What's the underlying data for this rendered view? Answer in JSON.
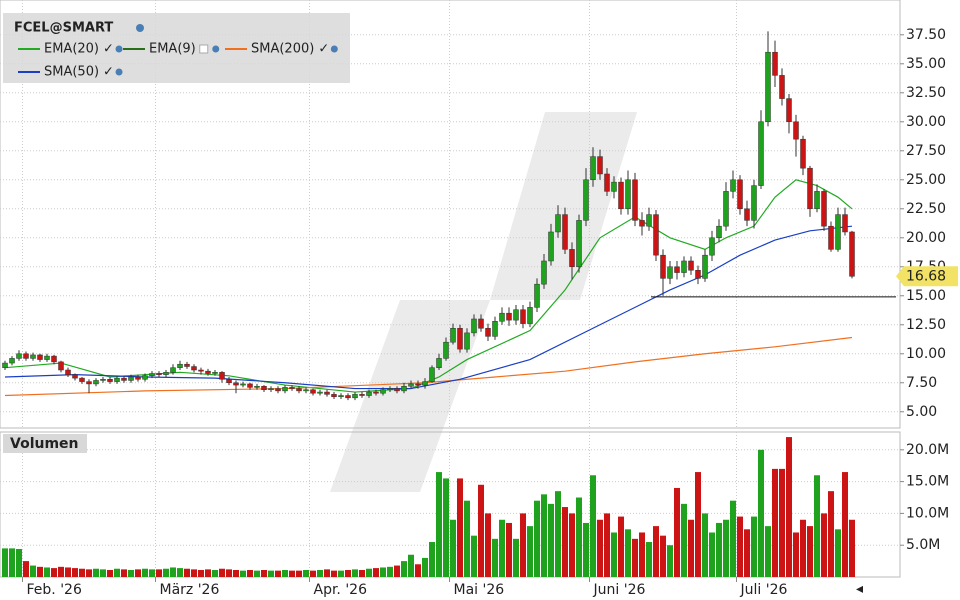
{
  "chart_data": {
    "type": "candlestick",
    "title": "FCEL@SMART",
    "volume_title": "Volumen",
    "up_color": "#1fa31f",
    "down_color": "#cc1414",
    "grid": true,
    "xticks": [
      {
        "value": 3,
        "label": "Feb. '26"
      },
      {
        "value": 22,
        "label": "März '26"
      },
      {
        "value": 44,
        "label": "Apr. '26"
      },
      {
        "value": 64,
        "label": "Mai '26"
      },
      {
        "value": 84,
        "label": "Juni '26"
      },
      {
        "value": 105,
        "label": "Juli '26"
      }
    ],
    "ylim": [
      3.6,
      40.5
    ],
    "yticks": [
      {
        "value": 5,
        "label": "5.00"
      },
      {
        "value": 7.5,
        "label": "7.50"
      },
      {
        "value": 10,
        "label": "10.00"
      },
      {
        "value": 12.5,
        "label": "12.50"
      },
      {
        "value": 15,
        "label": "15.00"
      },
      {
        "value": 17.5,
        "label": "17.50"
      },
      {
        "value": 20,
        "label": "20.00"
      },
      {
        "value": 22.5,
        "label": "22.50"
      },
      {
        "value": 25,
        "label": "25.00"
      },
      {
        "value": 27.5,
        "label": "27.50"
      },
      {
        "value": 30,
        "label": "30.00"
      },
      {
        "value": 32.5,
        "label": "32.50"
      },
      {
        "value": 35,
        "label": "35.00"
      },
      {
        "value": 37.5,
        "label": "37.50"
      }
    ],
    "volume_ylim": [
      0,
      22.8
    ],
    "volume_yticks": [
      {
        "value": 5,
        "label": "5.0M"
      },
      {
        "value": 10,
        "label": "10.0M"
      },
      {
        "value": 15,
        "label": "15.0M"
      },
      {
        "value": 20,
        "label": "20.0M"
      }
    ],
    "open": [
      8.8,
      9.2,
      9.6,
      10.0,
      9.6,
      9.9,
      9.5,
      9.8,
      9.3,
      8.6,
      8.2,
      7.9,
      7.6,
      7.4,
      7.7,
      7.8,
      7.6,
      7.9,
      7.7,
      8.0,
      7.8,
      8.1,
      8.3,
      8.2,
      8.4,
      8.8,
      9.1,
      8.9,
      8.6,
      8.5,
      8.3,
      8.4,
      7.8,
      7.5,
      7.3,
      7.4,
      7.1,
      7.2,
      6.9,
      7.0,
      6.8,
      7.1,
      7.0,
      6.8,
      6.9,
      6.6,
      6.7,
      6.5,
      6.3,
      6.4,
      6.2,
      6.5,
      6.4,
      6.7,
      6.6,
      6.9,
      7.0,
      6.8,
      7.2,
      7.4,
      7.3,
      7.6,
      8.8,
      9.6,
      11.0,
      12.2,
      10.4,
      11.8,
      13.0,
      12.2,
      11.5,
      12.8,
      13.5,
      12.9,
      13.8,
      12.6,
      14.0,
      16.0,
      18.0,
      20.5,
      22.0,
      19.0,
      17.5,
      21.5,
      25.0,
      27.0,
      25.5,
      24.0,
      24.8,
      22.5,
      25.0,
      21.5,
      21.0,
      22.0,
      18.5,
      16.5,
      17.5,
      17.0,
      18.0,
      17.2,
      16.5,
      18.5,
      20.0,
      21.0,
      24.0,
      25.0,
      22.5,
      21.5,
      24.5,
      30.0,
      36.0,
      34.0,
      32.0,
      30.0,
      28.5,
      26.0,
      22.5,
      24.0,
      21.0,
      19.0,
      22.0,
      20.5
    ],
    "high": [
      9.4,
      9.8,
      10.3,
      10.2,
      10.1,
      10.0,
      10.0,
      9.9,
      9.4,
      8.8,
      8.3,
      8.0,
      7.8,
      7.9,
      8.0,
      8.0,
      8.1,
      8.1,
      8.2,
      8.2,
      8.3,
      8.5,
      8.5,
      8.6,
      9.1,
      9.4,
      9.3,
      9.1,
      8.8,
      8.7,
      8.6,
      8.5,
      8.0,
      7.7,
      7.6,
      7.5,
      7.4,
      7.3,
      7.2,
      7.2,
      7.3,
      7.3,
      7.2,
      7.1,
      7.0,
      6.9,
      6.9,
      6.7,
      6.6,
      6.6,
      6.7,
      6.7,
      6.9,
      6.9,
      7.1,
      7.2,
      7.2,
      7.5,
      7.7,
      7.7,
      7.9,
      9.0,
      10.0,
      11.4,
      12.6,
      12.5,
      12.2,
      13.4,
      13.4,
      12.6,
      13.2,
      14.0,
      14.0,
      14.2,
      14.2,
      14.5,
      16.5,
      18.6,
      21.2,
      22.8,
      22.6,
      19.6,
      22.0,
      26.0,
      27.8,
      27.6,
      26.0,
      25.3,
      25.2,
      25.8,
      25.6,
      22.2,
      22.6,
      22.4,
      19.0,
      18.0,
      18.0,
      18.4,
      18.4,
      17.6,
      19.0,
      20.6,
      21.6,
      24.8,
      25.8,
      25.4,
      23.2,
      25.0,
      31.0,
      37.8,
      37.0,
      34.6,
      32.4,
      30.6,
      28.8,
      26.2,
      24.6,
      24.2,
      21.4,
      22.6,
      22.6,
      20.6
    ],
    "low": [
      8.6,
      9.0,
      9.4,
      9.4,
      9.4,
      9.3,
      9.3,
      9.1,
      8.4,
      8.0,
      7.7,
      7.4,
      6.6,
      7.2,
      7.5,
      7.4,
      7.4,
      7.5,
      7.5,
      7.6,
      7.6,
      7.9,
      8.0,
      8.0,
      8.2,
      8.6,
      8.7,
      8.4,
      8.2,
      8.1,
      8.1,
      7.5,
      7.3,
      6.6,
      7.1,
      6.9,
      6.9,
      6.7,
      6.7,
      6.6,
      6.6,
      6.8,
      6.6,
      6.6,
      6.4,
      6.4,
      6.3,
      6.1,
      6.1,
      6.0,
      6.0,
      6.2,
      6.2,
      6.4,
      6.4,
      6.7,
      6.6,
      6.6,
      7.0,
      7.0,
      7.0,
      7.5,
      8.6,
      9.4,
      10.8,
      10.1,
      10.1,
      11.5,
      11.9,
      11.1,
      11.2,
      12.5,
      12.4,
      12.5,
      12.2,
      12.3,
      13.6,
      15.6,
      17.6,
      20.0,
      18.6,
      16.4,
      17.0,
      21.0,
      24.4,
      25.0,
      23.6,
      23.4,
      22.0,
      22.0,
      21.0,
      20.2,
      20.6,
      18.0,
      15.0,
      16.0,
      16.4,
      16.6,
      16.8,
      16.0,
      16.2,
      18.0,
      19.6,
      20.6,
      23.4,
      22.0,
      21.0,
      20.8,
      24.2,
      29.6,
      33.0,
      31.4,
      29.0,
      27.0,
      25.4,
      21.8,
      22.2,
      20.6,
      18.8,
      18.8,
      20.2,
      16.5
    ],
    "close": [
      9.2,
      9.6,
      10.0,
      9.6,
      9.9,
      9.5,
      9.8,
      9.3,
      8.6,
      8.2,
      7.9,
      7.6,
      7.4,
      7.7,
      7.8,
      7.6,
      7.9,
      7.7,
      8.0,
      7.8,
      8.1,
      8.3,
      8.2,
      8.4,
      8.8,
      9.1,
      8.9,
      8.6,
      8.5,
      8.3,
      8.4,
      7.8,
      7.5,
      7.3,
      7.4,
      7.1,
      7.2,
      6.9,
      7.0,
      6.8,
      7.1,
      7.0,
      6.8,
      6.9,
      6.6,
      6.7,
      6.5,
      6.3,
      6.4,
      6.2,
      6.5,
      6.4,
      6.7,
      6.6,
      6.9,
      7.0,
      6.8,
      7.2,
      7.4,
      7.3,
      7.6,
      8.8,
      9.6,
      11.0,
      12.2,
      10.4,
      11.8,
      13.0,
      12.2,
      11.5,
      12.8,
      13.5,
      12.9,
      13.8,
      12.6,
      14.0,
      16.0,
      18.0,
      20.5,
      22.0,
      19.0,
      17.5,
      21.5,
      25.0,
      27.0,
      25.5,
      24.0,
      24.8,
      22.5,
      25.0,
      21.5,
      21.0,
      22.0,
      18.5,
      16.5,
      17.5,
      17.0,
      18.0,
      17.2,
      16.5,
      18.5,
      20.0,
      21.0,
      24.0,
      25.0,
      22.5,
      21.5,
      24.5,
      30.0,
      36.0,
      34.0,
      32.0,
      30.0,
      28.5,
      26.0,
      22.5,
      24.0,
      21.0,
      19.0,
      22.0,
      20.5,
      16.68
    ],
    "volume": [
      4.5,
      4.5,
      4.4,
      2.5,
      1.8,
      1.6,
      1.5,
      1.4,
      1.6,
      1.5,
      1.4,
      1.3,
      1.2,
      1.3,
      1.2,
      1.1,
      1.3,
      1.2,
      1.1,
      1.2,
      1.3,
      1.2,
      1.2,
      1.3,
      1.5,
      1.4,
      1.3,
      1.2,
      1.1,
      1.2,
      1.1,
      1.3,
      1.2,
      1.1,
      1.0,
      1.1,
      1.0,
      1.1,
      1.0,
      1.0,
      1.1,
      1.0,
      1.0,
      1.1,
      1.0,
      1.1,
      1.2,
      1.0,
      1.0,
      1.1,
      1.2,
      1.1,
      1.3,
      1.4,
      1.5,
      1.6,
      1.8,
      2.5,
      3.5,
      2.0,
      3.0,
      5.5,
      16.5,
      15.5,
      9.0,
      15.5,
      12.0,
      6.5,
      14.5,
      10.0,
      6.0,
      9.0,
      8.5,
      6.0,
      10.0,
      8.0,
      12.0,
      13.0,
      11.5,
      13.5,
      11.0,
      10.0,
      12.5,
      8.5,
      16.0,
      9.0,
      10.0,
      7.0,
      9.5,
      7.5,
      6.0,
      7.0,
      5.5,
      8.0,
      6.5,
      5.0,
      14.0,
      11.5,
      9.0,
      16.5,
      10.0,
      7.0,
      8.5,
      9.0,
      12.0,
      9.5,
      7.5,
      9.5,
      20.0,
      8.0,
      17.0,
      17.0,
      22.0,
      7.0,
      9.0,
      8.0,
      16.0,
      10.0,
      13.5,
      7.5,
      16.5,
      9.0
    ],
    "series": [
      {
        "name": "EMA(20)",
        "color": "#22aa22",
        "visible": true,
        "x": [
          0,
          8,
          15,
          25,
          32,
          40,
          50,
          58,
          62,
          66,
          75,
          80,
          85,
          90,
          95,
          100,
          103,
          107,
          110,
          113,
          116,
          119,
          121
        ],
        "values": [
          8.8,
          9.2,
          8.0,
          8.4,
          8.1,
          7.3,
          6.7,
          7.0,
          8.0,
          9.5,
          12.0,
          15.5,
          20.0,
          21.8,
          20.0,
          19.0,
          20.0,
          21.0,
          23.5,
          25.0,
          24.5,
          23.5,
          22.5
        ]
      },
      {
        "name": "EMA(9)",
        "color": "#2a6e1a",
        "visible": false
      },
      {
        "name": "SMA(200)",
        "color": "#f07020",
        "visible": true,
        "x": [
          0,
          20,
          40,
          60,
          70,
          80,
          90,
          100,
          110,
          121
        ],
        "values": [
          6.4,
          6.8,
          7.0,
          7.5,
          8.0,
          8.5,
          9.3,
          10.0,
          10.6,
          11.4
        ]
      },
      {
        "name": "SMA(50)",
        "color": "#1a3fc4",
        "visible": true,
        "x": [
          0,
          10,
          20,
          30,
          40,
          50,
          58,
          65,
          75,
          85,
          95,
          100,
          105,
          110,
          115,
          121
        ],
        "values": [
          8.0,
          8.2,
          8.0,
          7.9,
          7.5,
          7.0,
          7.0,
          7.8,
          9.5,
          12.5,
          15.5,
          16.8,
          18.5,
          19.8,
          20.6,
          21.0
        ]
      }
    ],
    "hline": {
      "value": 14.9,
      "from": 93
    }
  }
}
